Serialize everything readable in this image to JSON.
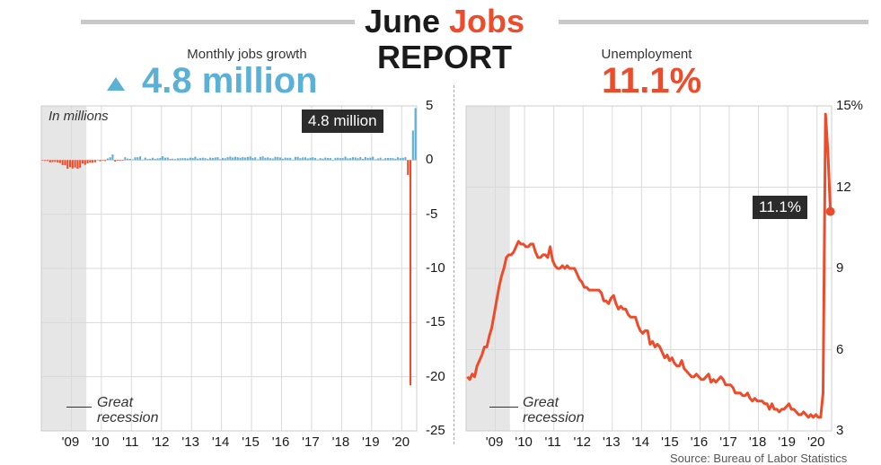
{
  "header": {
    "title_part1": "June",
    "title_part2": "Jobs",
    "title_line2": "REPORT"
  },
  "left": {
    "subtitle": "Monthly jobs growth",
    "headline": "4.8 million",
    "unit_note": "In millions",
    "callout": "4.8 million",
    "recession_label_1": "Great",
    "recession_label_2": "recession"
  },
  "right": {
    "subtitle": "Unemployment",
    "headline": "11.1%",
    "callout": "11.1%",
    "recession_label_1": "Great",
    "recession_label_2": "recession"
  },
  "source": "Source: Bureau of Labor Statistics",
  "colors": {
    "positive": "#5bb0d6",
    "negative": "#ee4b2b",
    "line": "#ee4b2b",
    "recession_shade": "#e6e6e6",
    "callout_bg": "#2b2b2b"
  },
  "chart_data": [
    {
      "type": "bar",
      "title": "Monthly jobs growth",
      "ylabel": "In millions",
      "ylim": [
        -25,
        5
      ],
      "yticks": [
        5,
        0,
        -5,
        -10,
        -15,
        -20,
        -25
      ],
      "yticks_labels": [
        "5",
        "0",
        "-5",
        "-10",
        "-15",
        "-20",
        "-25"
      ],
      "xticks": [
        "'09",
        "'10",
        "'11",
        "'12",
        "'13",
        "'14",
        "'15",
        "'16",
        "'17",
        "'18",
        "'19",
        "'20"
      ],
      "x_start": "2008-01",
      "x_end": "2020-06",
      "recession_shading": [
        "2008-01",
        "2009-06"
      ],
      "annotation": "4.8 million",
      "series": [
        {
          "values": [
            -0.01,
            -0.08,
            -0.08,
            -0.21,
            -0.18,
            -0.17,
            -0.21,
            -0.27,
            -0.46,
            -0.48,
            -0.8,
            -0.66,
            -0.78,
            -0.69,
            -0.8,
            -0.7,
            -0.33,
            -0.44,
            -0.3,
            -0.23,
            -0.24,
            -0.2,
            0.01,
            -0.11,
            -0.02,
            -0.08,
            0.15,
            0.26,
            0.52,
            -0.14,
            -0.05,
            -0.06,
            -0.04,
            0.26,
            0.14,
            0.11,
            0.06,
            0.26,
            0.26,
            0.34,
            0.05,
            0.23,
            0.1,
            0.12,
            0.21,
            0.11,
            0.16,
            0.2,
            0.36,
            0.22,
            0.24,
            0.11,
            0.13,
            0.08,
            0.16,
            0.17,
            0.18,
            0.18,
            0.15,
            0.22,
            0.19,
            0.31,
            0.14,
            0.18,
            0.22,
            0.18,
            0.1,
            0.23,
            0.19,
            0.24,
            0.27,
            0.08,
            0.19,
            0.17,
            0.27,
            0.33,
            0.24,
            0.3,
            0.26,
            0.22,
            0.27,
            0.24,
            0.29,
            0.33,
            0.19,
            0.26,
            0.07,
            0.29,
            0.34,
            0.21,
            0.25,
            0.18,
            0.15,
            0.3,
            0.28,
            0.24,
            0.13,
            0.23,
            0.21,
            0.21,
            0.04,
            0.29,
            0.3,
            0.18,
            0.25,
            0.25,
            0.16,
            0.22,
            0.26,
            0.2,
            0.07,
            0.18,
            0.14,
            0.23,
            0.2,
            0.19,
            0.02,
            0.21,
            0.22,
            0.18,
            0.18,
            0.32,
            0.16,
            0.18,
            0.27,
            0.24,
            0.18,
            0.28,
            0.11,
            0.28,
            0.2,
            0.23,
            0.31,
            0.07,
            0.15,
            0.22,
            0.08,
            0.18,
            0.19,
            0.2,
            0.18,
            0.13,
            0.26,
            0.18,
            0.21,
            0.27,
            -1.37,
            -20.79,
            2.73,
            4.8
          ]
        }
      ]
    },
    {
      "type": "line",
      "title": "Unemployment",
      "ylim": [
        3,
        15
      ],
      "yticks": [
        15,
        12,
        9,
        6,
        3
      ],
      "yticks_labels": [
        "15%",
        "12",
        "9",
        "6",
        "3"
      ],
      "xticks": [
        "'09",
        "'10",
        "'11",
        "'12",
        "'13",
        "'14",
        "'15",
        "'16",
        "'17",
        "'18",
        "'19",
        "'20"
      ],
      "x_start": "2008-01",
      "x_end": "2020-06",
      "recession_shading": [
        "2008-01",
        "2009-06"
      ],
      "annotation": "11.1%",
      "series": [
        {
          "values": [
            5.0,
            4.9,
            5.1,
            5.0,
            5.4,
            5.6,
            5.8,
            6.1,
            6.1,
            6.5,
            6.8,
            7.3,
            7.8,
            8.3,
            8.7,
            9.0,
            9.4,
            9.5,
            9.5,
            9.6,
            9.8,
            10.0,
            9.9,
            9.9,
            9.8,
            9.8,
            9.9,
            9.9,
            9.6,
            9.4,
            9.4,
            9.5,
            9.5,
            9.4,
            9.8,
            9.3,
            9.1,
            9.0,
            9.0,
            9.1,
            9.0,
            9.1,
            9.0,
            9.0,
            9.0,
            8.8,
            8.6,
            8.5,
            8.3,
            8.3,
            8.2,
            8.2,
            8.2,
            8.2,
            8.2,
            8.1,
            7.8,
            7.8,
            7.7,
            7.9,
            8.0,
            7.7,
            7.5,
            7.6,
            7.5,
            7.5,
            7.3,
            7.2,
            7.2,
            7.2,
            6.9,
            6.7,
            6.6,
            6.7,
            6.7,
            6.2,
            6.3,
            6.1,
            6.2,
            6.1,
            5.9,
            5.7,
            5.8,
            5.6,
            5.7,
            5.5,
            5.4,
            5.4,
            5.6,
            5.3,
            5.2,
            5.1,
            5.0,
            5.0,
            5.1,
            5.0,
            4.9,
            4.9,
            5.0,
            5.1,
            4.8,
            4.9,
            4.8,
            4.9,
            5.0,
            4.9,
            4.7,
            4.7,
            4.7,
            4.6,
            4.4,
            4.4,
            4.4,
            4.3,
            4.3,
            4.4,
            4.2,
            4.1,
            4.2,
            4.1,
            4.1,
            4.1,
            4.0,
            4.0,
            3.8,
            4.0,
            3.8,
            3.8,
            3.7,
            3.8,
            3.8,
            3.9,
            4.0,
            3.8,
            3.8,
            3.7,
            3.6,
            3.6,
            3.7,
            3.6,
            3.5,
            3.6,
            3.5,
            3.6,
            3.5,
            3.5,
            4.4,
            14.7,
            13.3,
            11.1
          ]
        }
      ]
    }
  ]
}
